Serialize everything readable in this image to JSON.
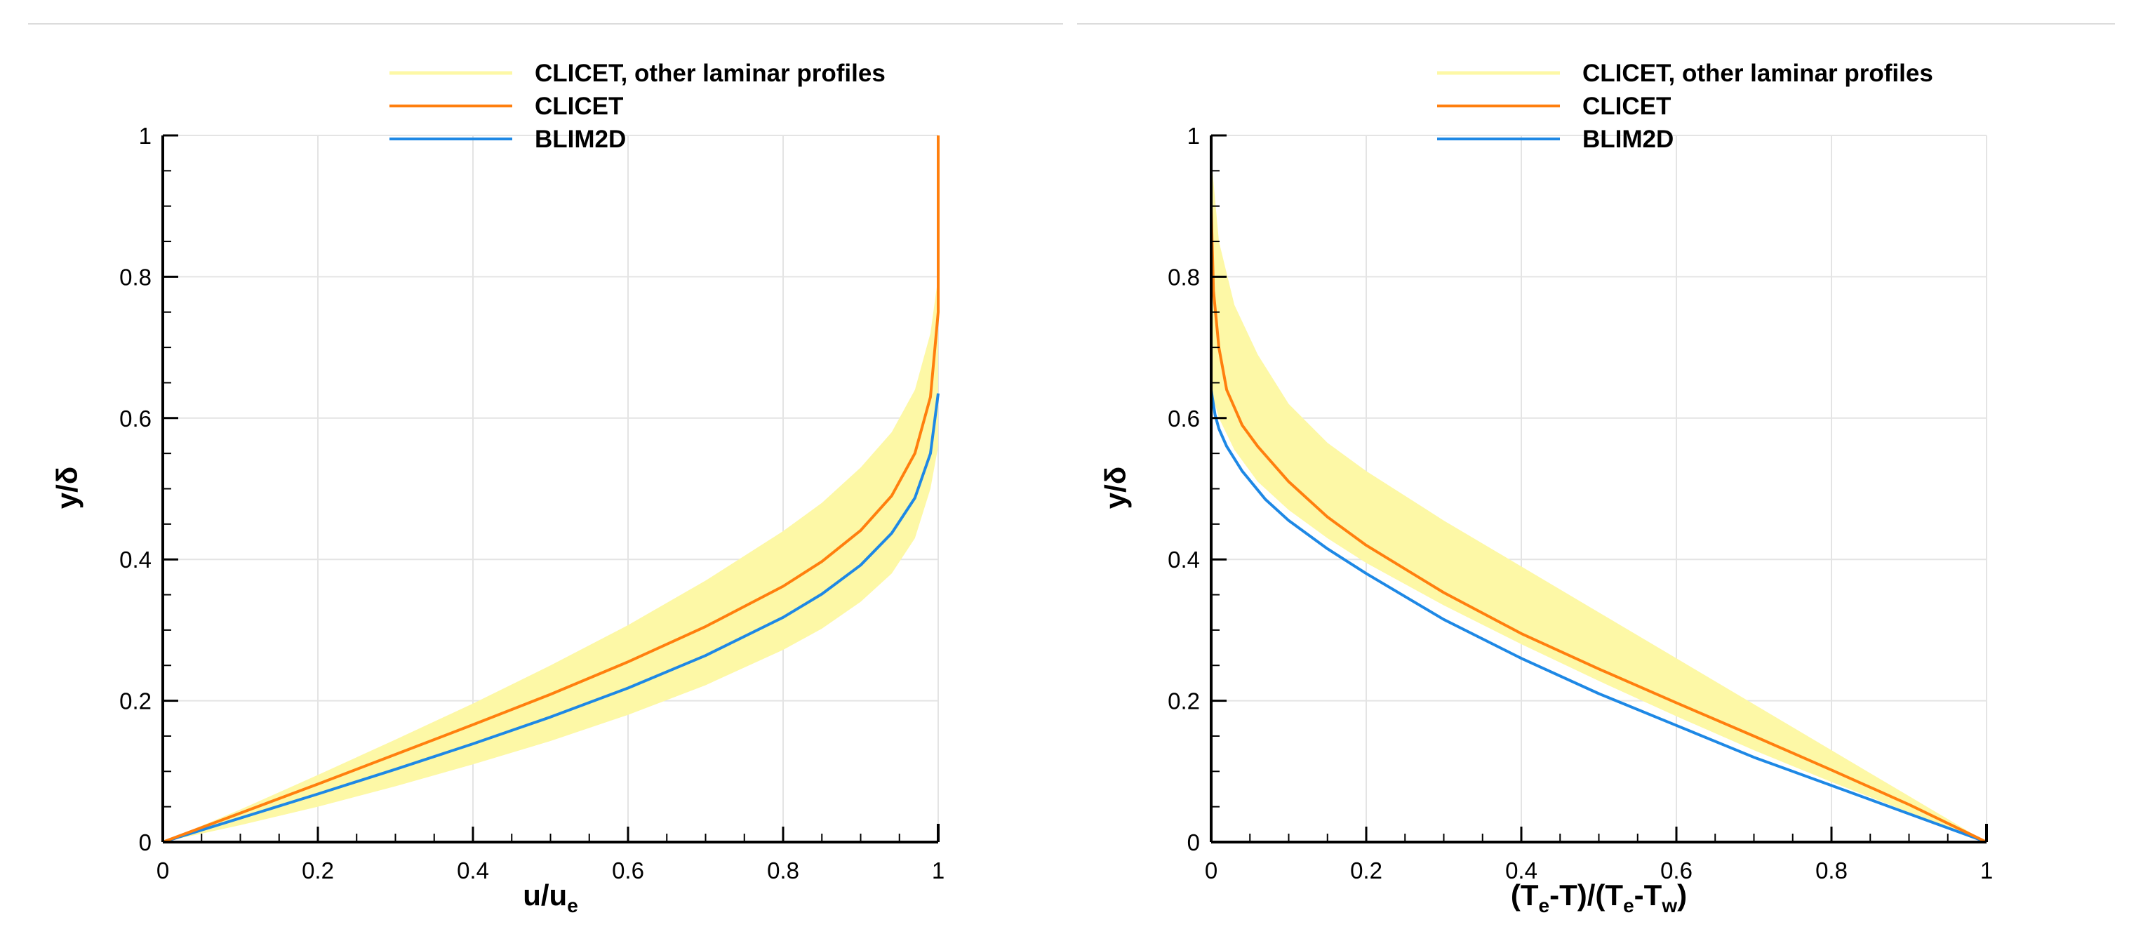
{
  "colors": {
    "band": "#fdf8a6",
    "clicet": "#ff7f0e",
    "blim2d": "#1e88e5",
    "grid": "#e4e4e4",
    "divider": "#dcdcdc"
  },
  "chart_data": [
    {
      "type": "line",
      "xlabel": "u/u",
      "xlabel_sub": "e",
      "ylabel": "y/δ",
      "xlim": [
        0,
        1
      ],
      "ylim": [
        0,
        1
      ],
      "xticks": [
        "0",
        "0.2",
        "0.4",
        "0.6",
        "0.8",
        "1"
      ],
      "yticks": [
        "0",
        "0.2",
        "0.4",
        "0.6",
        "0.8",
        "1"
      ],
      "grid": true,
      "legend_position": "top-center",
      "legend": [
        {
          "name": "CLICET, other laminar profiles",
          "kind": "band"
        },
        {
          "name": "CLICET",
          "kind": "line"
        },
        {
          "name": "BLIM2D",
          "kind": "line"
        }
      ],
      "band": {
        "name": "CLICET, other laminar profiles",
        "upper": {
          "x": [
            0,
            0.1,
            0.2,
            0.3,
            0.4,
            0.5,
            0.6,
            0.7,
            0.8,
            0.85,
            0.9,
            0.94,
            0.97,
            0.99,
            1.0
          ],
          "y": [
            0,
            0.046,
            0.095,
            0.145,
            0.196,
            0.25,
            0.307,
            0.37,
            0.44,
            0.48,
            0.53,
            0.58,
            0.64,
            0.72,
            0.8
          ]
        },
        "lower": {
          "x": [
            0,
            0.1,
            0.2,
            0.3,
            0.4,
            0.5,
            0.6,
            0.7,
            0.8,
            0.85,
            0.9,
            0.94,
            0.97,
            0.99,
            1.0
          ],
          "y": [
            0,
            0.024,
            0.05,
            0.079,
            0.11,
            0.143,
            0.18,
            0.222,
            0.272,
            0.302,
            0.34,
            0.38,
            0.43,
            0.5,
            0.56
          ]
        }
      },
      "series": [
        {
          "name": "CLICET",
          "x": [
            0,
            0.1,
            0.2,
            0.3,
            0.4,
            0.5,
            0.6,
            0.7,
            0.8,
            0.85,
            0.9,
            0.94,
            0.97,
            0.99,
            1.0,
            1.0
          ],
          "y": [
            0,
            0.041,
            0.082,
            0.124,
            0.166,
            0.209,
            0.255,
            0.305,
            0.362,
            0.397,
            0.441,
            0.49,
            0.55,
            0.63,
            0.75,
            1.0
          ]
        },
        {
          "name": "BLIM2D",
          "x": [
            0,
            0.1,
            0.2,
            0.3,
            0.4,
            0.5,
            0.6,
            0.7,
            0.8,
            0.85,
            0.9,
            0.94,
            0.97,
            0.99,
            1.0
          ],
          "y": [
            0,
            0.034,
            0.068,
            0.103,
            0.139,
            0.177,
            0.218,
            0.264,
            0.318,
            0.351,
            0.392,
            0.437,
            0.487,
            0.55,
            0.635
          ]
        }
      ]
    },
    {
      "type": "line",
      "xlabel": "(T-T)/(T-T)",
      "xlabel_parts": [
        "(T",
        "e",
        "-T)/(T",
        "e",
        "-T",
        "w",
        ")"
      ],
      "ylabel": "y/δ",
      "xlim": [
        0,
        1
      ],
      "ylim": [
        0,
        1
      ],
      "xticks": [
        "0",
        "0.2",
        "0.4",
        "0.6",
        "0.8",
        "1"
      ],
      "yticks": [
        "0",
        "0.2",
        "0.4",
        "0.6",
        "0.8",
        "1"
      ],
      "grid": true,
      "legend_position": "top-center",
      "legend": [
        {
          "name": "CLICET, other laminar profiles",
          "kind": "band"
        },
        {
          "name": "CLICET",
          "kind": "line"
        },
        {
          "name": "BLIM2D",
          "kind": "line"
        }
      ],
      "band": {
        "name": "CLICET, other laminar profiles",
        "upper": {
          "x": [
            0,
            0.01,
            0.03,
            0.06,
            0.1,
            0.15,
            0.2,
            0.3,
            0.4,
            0.5,
            0.6,
            0.7,
            0.8,
            0.9,
            1.0
          ],
          "y": [
            0.97,
            0.85,
            0.76,
            0.69,
            0.62,
            0.565,
            0.525,
            0.455,
            0.39,
            0.325,
            0.26,
            0.195,
            0.13,
            0.065,
            0
          ]
        },
        "lower": {
          "x": [
            0,
            0.01,
            0.03,
            0.06,
            0.1,
            0.15,
            0.2,
            0.3,
            0.4,
            0.5,
            0.6,
            0.7,
            0.8,
            0.9,
            1.0
          ],
          "y": [
            0.64,
            0.6,
            0.555,
            0.51,
            0.47,
            0.43,
            0.395,
            0.335,
            0.28,
            0.228,
            0.178,
            0.13,
            0.085,
            0.042,
            0
          ]
        }
      },
      "series": [
        {
          "name": "CLICET",
          "x": [
            0,
            0.003,
            0.01,
            0.02,
            0.04,
            0.06,
            0.1,
            0.15,
            0.2,
            0.3,
            0.4,
            0.5,
            0.6,
            0.7,
            0.8,
            0.9,
            1.0
          ],
          "y": [
            0.9,
            0.78,
            0.7,
            0.64,
            0.59,
            0.56,
            0.51,
            0.46,
            0.42,
            0.353,
            0.295,
            0.245,
            0.197,
            0.15,
            0.102,
            0.053,
            0
          ]
        },
        {
          "name": "BLIM2D",
          "x": [
            0,
            0.005,
            0.01,
            0.02,
            0.04,
            0.07,
            0.1,
            0.15,
            0.2,
            0.3,
            0.4,
            0.5,
            0.6,
            0.7,
            0.8,
            0.9,
            1.0
          ],
          "y": [
            0.64,
            0.605,
            0.585,
            0.56,
            0.525,
            0.485,
            0.455,
            0.415,
            0.38,
            0.315,
            0.26,
            0.21,
            0.165,
            0.12,
            0.08,
            0.04,
            0
          ]
        }
      ]
    }
  ]
}
